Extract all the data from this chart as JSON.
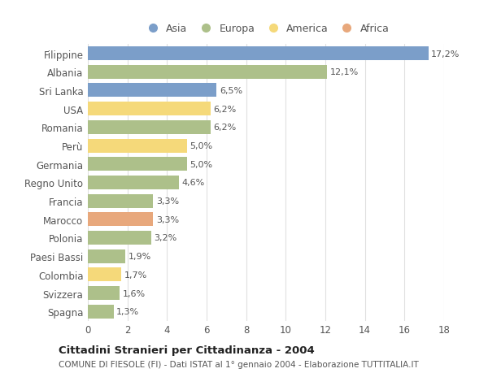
{
  "countries": [
    "Filippine",
    "Albania",
    "Sri Lanka",
    "USA",
    "Romania",
    "Perù",
    "Germania",
    "Regno Unito",
    "Francia",
    "Marocco",
    "Polonia",
    "Paesi Bassi",
    "Colombia",
    "Svizzera",
    "Spagna"
  ],
  "values": [
    17.2,
    12.1,
    6.5,
    6.2,
    6.2,
    5.0,
    5.0,
    4.6,
    3.3,
    3.3,
    3.2,
    1.9,
    1.7,
    1.6,
    1.3
  ],
  "continents": [
    "Asia",
    "Europa",
    "Asia",
    "America",
    "Europa",
    "America",
    "Europa",
    "Europa",
    "Europa",
    "Africa",
    "Europa",
    "Europa",
    "America",
    "Europa",
    "Europa"
  ],
  "colors": {
    "Asia": "#7b9ec9",
    "Europa": "#adc08a",
    "America": "#f5d97a",
    "Africa": "#e8a87c"
  },
  "xlim": [
    0,
    18
  ],
  "xticks": [
    0,
    2,
    4,
    6,
    8,
    10,
    12,
    14,
    16,
    18
  ],
  "title": "Cittadini Stranieri per Cittadinanza - 2004",
  "subtitle": "COMUNE DI FIESOLE (FI) - Dati ISTAT al 1° gennaio 2004 - Elaborazione TUTTITALIA.IT",
  "background_color": "#ffffff",
  "grid_color": "#e0e0e0",
  "bar_height": 0.75,
  "legend_order": [
    "Asia",
    "Europa",
    "America",
    "Africa"
  ]
}
